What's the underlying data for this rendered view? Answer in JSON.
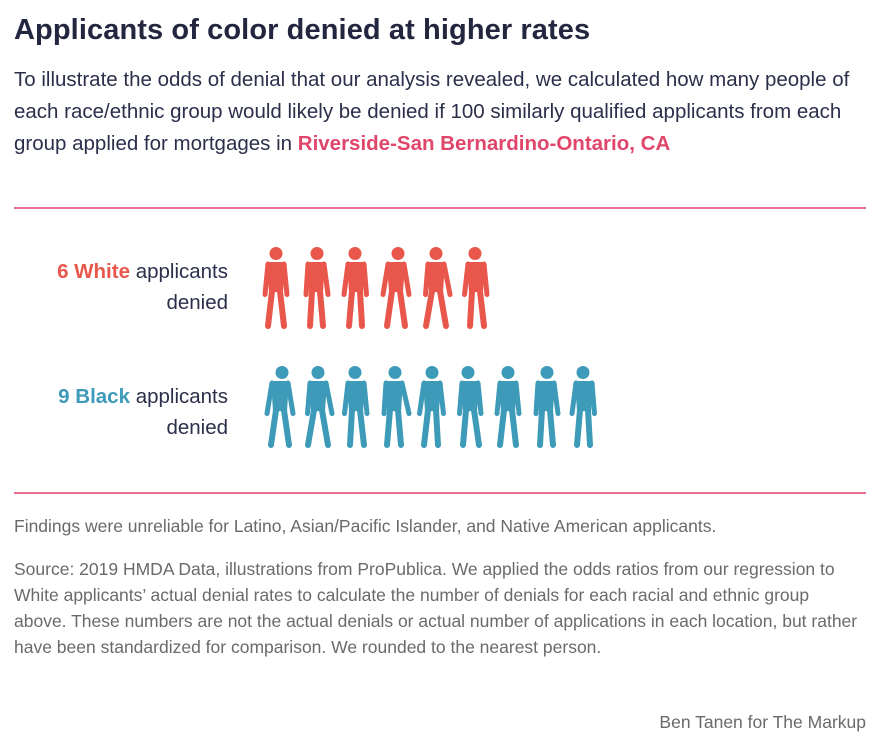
{
  "title": "Applicants of color denied at higher rates",
  "subtitle_text": "To illustrate the odds of denial that our analysis revealed, we calculated how many people of each race/ethnic group would likely be denied if 100 similarly qualified applicants from each group applied for mortgages in ",
  "subtitle_place": "Riverside-San Bernardino-Ontario, CA",
  "chart_data": {
    "type": "pictogram",
    "unit": "applicants denied per 100 similarly qualified applicants",
    "series": [
      {
        "name": "White",
        "value": 6,
        "color": "#e8564c",
        "label_count": "6 White",
        "label_rest": "applicants",
        "label_line2": "denied"
      },
      {
        "name": "Black",
        "value": 9,
        "color": "#3d9ab8",
        "label_count": "9 Black",
        "label_rest": "applicants",
        "label_line2": "denied"
      }
    ]
  },
  "note": "Findings were unreliable for Latino, Asian/Pacific Islander, and Native American applicants.",
  "source": "Source: 2019 HMDA Data, illustrations from ProPublica. We applied the odds ratios from our regression to White applicants’ actual denial rates to calculate the number of denials for each racial and ethnic group above. These numbers are not the actual denials or actual number of applications in each location, but rather have been standardized for comparison. We rounded to the nearest person.",
  "credit": "Ben Tanen for The Markup",
  "colors": {
    "accent": "#e0456a",
    "rule": "#e7708f",
    "white_group": "#e8564c",
    "black_group": "#3d9ab8"
  },
  "icons": [
    "person-silhouette-icon"
  ]
}
